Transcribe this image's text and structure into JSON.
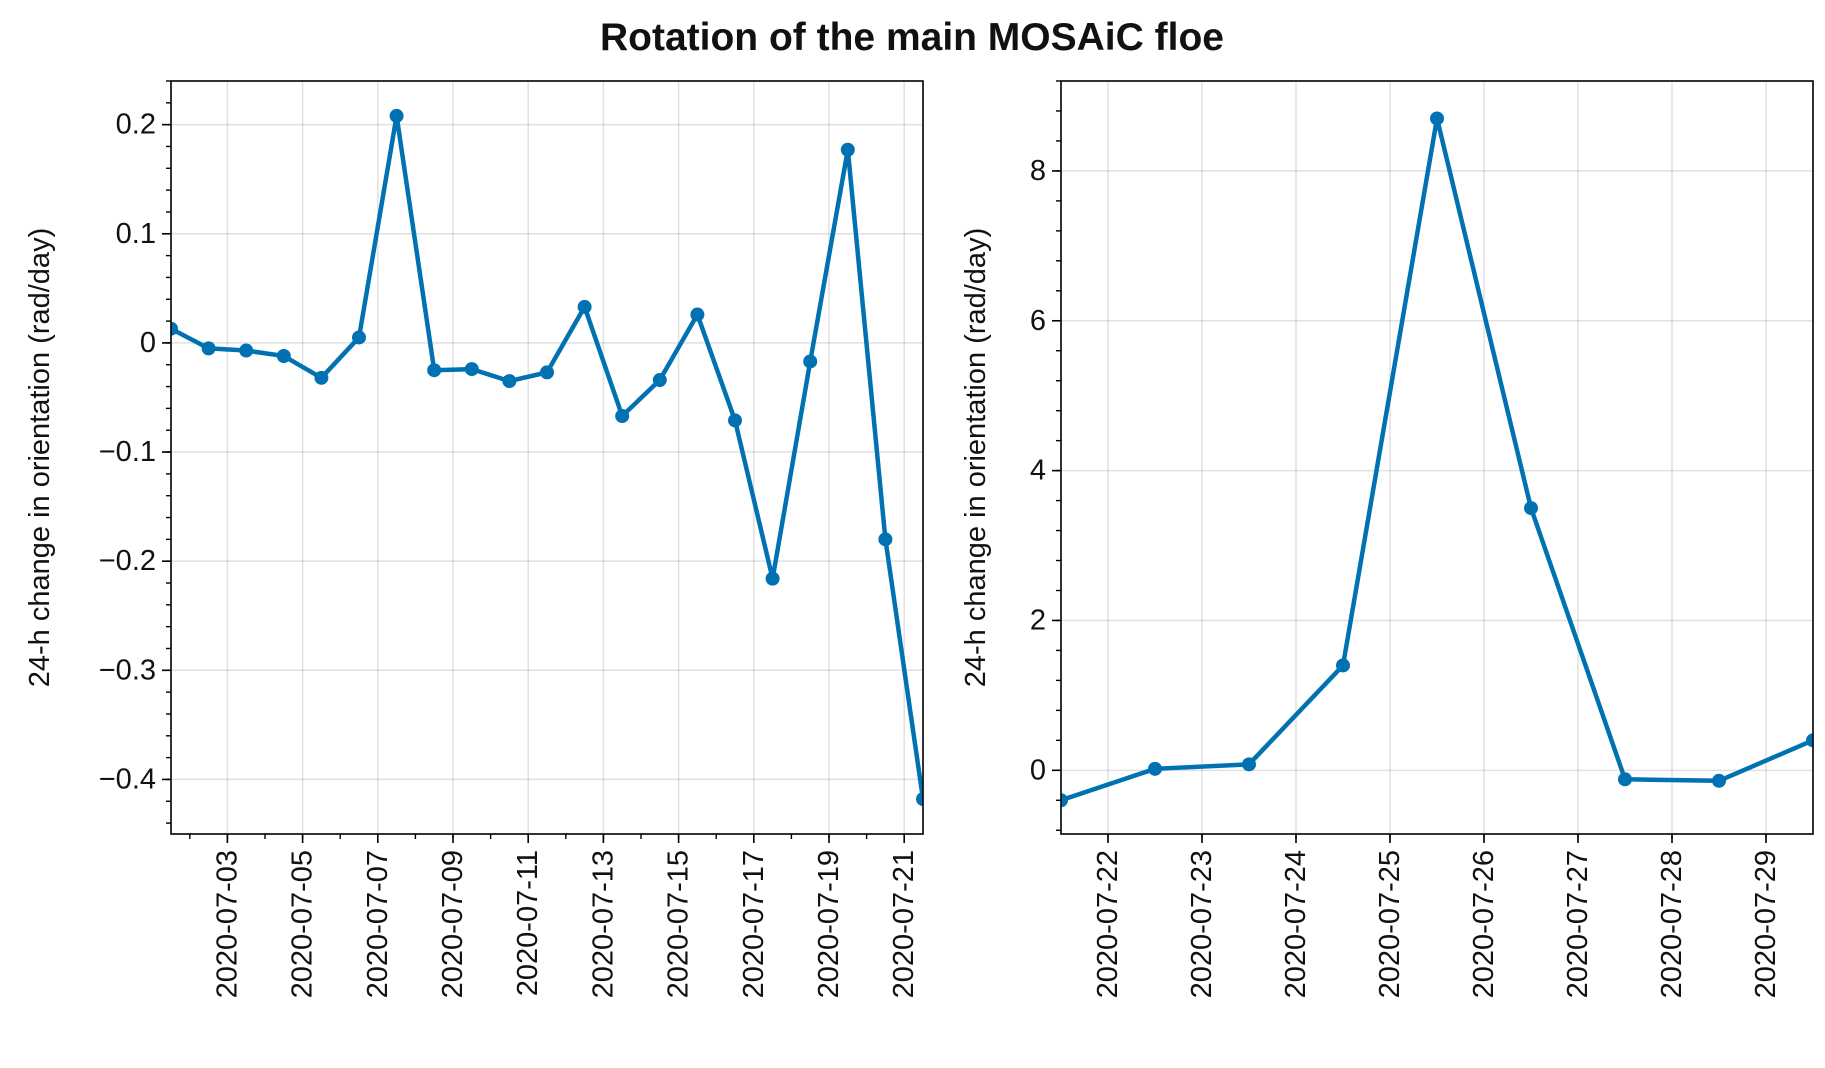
{
  "chart_data": {
    "title": "Rotation of the main MOSAiC floe",
    "line_color": "#0072b2",
    "grid": true,
    "panels": [
      {
        "type": "line",
        "ylabel": "24-h change in orientation (rad/day)",
        "ylim": [
          -0.45,
          0.24
        ],
        "xlim": [
          "2020-07-01T12:00",
          "2020-07-21T12:00"
        ],
        "y_ticks": [
          0.2,
          0.1,
          0,
          -0.1,
          -0.2,
          -0.3,
          -0.4
        ],
        "y_tick_labels": [
          "0.2",
          "0.1",
          "0",
          "−0.1",
          "−0.2",
          "−0.3",
          "−0.4"
        ],
        "x_ticks": [
          "2020-07-03",
          "2020-07-05",
          "2020-07-07",
          "2020-07-09",
          "2020-07-11",
          "2020-07-13",
          "2020-07-15",
          "2020-07-17",
          "2020-07-19",
          "2020-07-21"
        ],
        "x": [
          "2020-07-01T12:00",
          "2020-07-02T12:00",
          "2020-07-03T12:00",
          "2020-07-04T12:00",
          "2020-07-05T12:00",
          "2020-07-06T12:00",
          "2020-07-07T12:00",
          "2020-07-08T12:00",
          "2020-07-09T12:00",
          "2020-07-10T12:00",
          "2020-07-11T12:00",
          "2020-07-12T12:00",
          "2020-07-13T12:00",
          "2020-07-14T12:00",
          "2020-07-15T12:00",
          "2020-07-16T12:00",
          "2020-07-17T12:00",
          "2020-07-18T12:00",
          "2020-07-19T12:00",
          "2020-07-20T12:00",
          "2020-07-21T12:00"
        ],
        "y": [
          0.013,
          -0.005,
          -0.007,
          -0.012,
          -0.032,
          0.005,
          0.208,
          -0.025,
          -0.024,
          -0.035,
          -0.027,
          0.033,
          -0.067,
          -0.034,
          0.026,
          -0.071,
          -0.216,
          -0.017,
          0.177,
          -0.18,
          -0.418
        ]
      },
      {
        "type": "line",
        "ylabel": "24-h change in orientation (rad/day)",
        "ylim": [
          -0.85,
          9.2
        ],
        "xlim": [
          "2020-07-21T12:00",
          "2020-07-29T12:00"
        ],
        "y_ticks": [
          8,
          6,
          4,
          2,
          0
        ],
        "y_tick_labels": [
          "8",
          "6",
          "4",
          "2",
          "0"
        ],
        "x_ticks": [
          "2020-07-22",
          "2020-07-23",
          "2020-07-24",
          "2020-07-25",
          "2020-07-26",
          "2020-07-27",
          "2020-07-28",
          "2020-07-29"
        ],
        "x": [
          "2020-07-21T12:00",
          "2020-07-22T12:00",
          "2020-07-23T12:00",
          "2020-07-24T12:00",
          "2020-07-25T12:00",
          "2020-07-26T12:00",
          "2020-07-27T12:00",
          "2020-07-28T12:00",
          "2020-07-29T12:00"
        ],
        "y": [
          -0.4,
          0.02,
          0.08,
          1.4,
          8.7,
          3.5,
          -0.12,
          -0.14,
          0.4
        ]
      }
    ]
  }
}
